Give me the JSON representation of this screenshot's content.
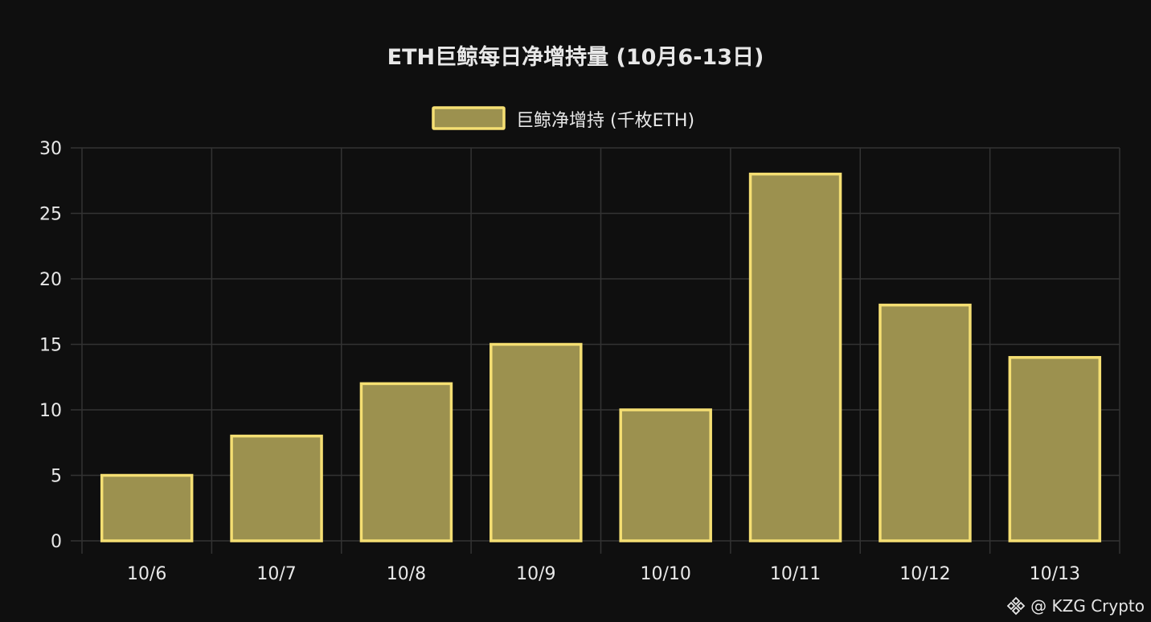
{
  "chart_data": {
    "type": "bar",
    "title": "ETH巨鲸每日净增持量 (10月6-13日)",
    "categories": [
      "10/6",
      "10/7",
      "10/8",
      "10/9",
      "10/10",
      "10/11",
      "10/12",
      "10/13"
    ],
    "series": [
      {
        "name": "巨鲸净增持 (千枚ETH)",
        "values": [
          5,
          8,
          12,
          15,
          10,
          28,
          18,
          14
        ]
      }
    ],
    "ylim": [
      0,
      30
    ],
    "yticks": [
      "0",
      "5",
      "10",
      "15",
      "20",
      "25",
      "30"
    ],
    "grid": true,
    "legend_position": "top-center"
  },
  "colors": {
    "background": "#0f0f0f",
    "bar_fill": "#9c914f",
    "bar_border": "#f5df73",
    "grid": "#333333",
    "text": "#e8e8e8"
  },
  "watermark": {
    "icon": "binance-logo-icon",
    "text": "@ KZG Crypto"
  }
}
